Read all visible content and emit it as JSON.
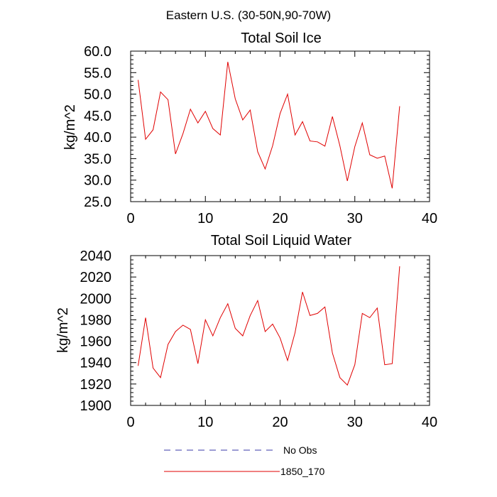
{
  "main_title": "Eastern U.S. (30-50N,90-70W)",
  "legend": [
    {
      "label": "No Obs",
      "color": "#3a3aa8",
      "style": "dashed"
    },
    {
      "label": "1850_170",
      "color": "#e00000",
      "style": "solid"
    }
  ],
  "chart_data": [
    {
      "type": "line",
      "title": "Total Soil Ice",
      "xlabel": "",
      "ylabel": "kg/m^2",
      "xlim": [
        0,
        40
      ],
      "ylim": [
        25,
        60
      ],
      "xticks": [
        0,
        10,
        20,
        30,
        40
      ],
      "xtick_labels": [
        "0",
        "10",
        "20",
        "30",
        "40"
      ],
      "yticks": [
        25,
        30,
        35,
        40,
        45,
        50,
        55,
        60
      ],
      "ytick_labels": [
        "25.0",
        "30.0",
        "35.0",
        "40.0",
        "45.0",
        "50.0",
        "55.0",
        "60.0"
      ],
      "series": [
        {
          "name": "1850_170",
          "color": "#e00000",
          "x": [
            1,
            2,
            3,
            4,
            5,
            6,
            7,
            8,
            9,
            10,
            11,
            12,
            13,
            14,
            15,
            16,
            17,
            18,
            19,
            20,
            21,
            22,
            23,
            24,
            25,
            26,
            27,
            28,
            29,
            30,
            31,
            32,
            33,
            34,
            35,
            36
          ],
          "values": [
            53.3,
            39.5,
            41.7,
            50.5,
            48.7,
            36.1,
            40.8,
            46.5,
            43.3,
            46.0,
            42.0,
            40.5,
            57.5,
            48.9,
            44.0,
            46.3,
            36.6,
            32.6,
            38.0,
            45.5,
            50.0,
            40.5,
            43.6,
            39.1,
            38.9,
            37.9,
            44.8,
            38.0,
            29.8,
            37.8,
            43.3,
            35.9,
            35.1,
            35.6,
            28.1,
            47.2
          ]
        }
      ]
    },
    {
      "type": "line",
      "title": "Total Soil Liquid Water",
      "xlabel": "",
      "ylabel": "kg/m^2",
      "xlim": [
        0,
        40
      ],
      "ylim": [
        1900,
        2040
      ],
      "xticks": [
        0,
        10,
        20,
        30,
        40
      ],
      "xtick_labels": [
        "0",
        "10",
        "20",
        "30",
        "40"
      ],
      "yticks": [
        1900,
        1920,
        1940,
        1960,
        1980,
        2000,
        2020,
        2040
      ],
      "ytick_labels": [
        "1900",
        "1920",
        "1940",
        "1960",
        "1980",
        "2000",
        "2020",
        "2040"
      ],
      "series": [
        {
          "name": "1850_170",
          "color": "#e00000",
          "x": [
            1,
            2,
            3,
            4,
            5,
            6,
            7,
            8,
            9,
            10,
            11,
            12,
            13,
            14,
            15,
            16,
            17,
            18,
            19,
            20,
            21,
            22,
            23,
            24,
            25,
            26,
            27,
            28,
            29,
            30,
            31,
            32,
            33,
            34,
            35,
            36
          ],
          "values": [
            1937,
            1982,
            1935,
            1926,
            1957,
            1969,
            1975,
            1971,
            1939,
            1980,
            1965,
            1982,
            1995,
            1972,
            1965,
            1984,
            1998,
            1969,
            1976,
            1963,
            1942,
            1968,
            2006,
            1984,
            1986,
            1992,
            1949,
            1926,
            1919,
            1938,
            1986,
            1982,
            1991,
            1938,
            1939,
            2030
          ]
        }
      ]
    }
  ]
}
